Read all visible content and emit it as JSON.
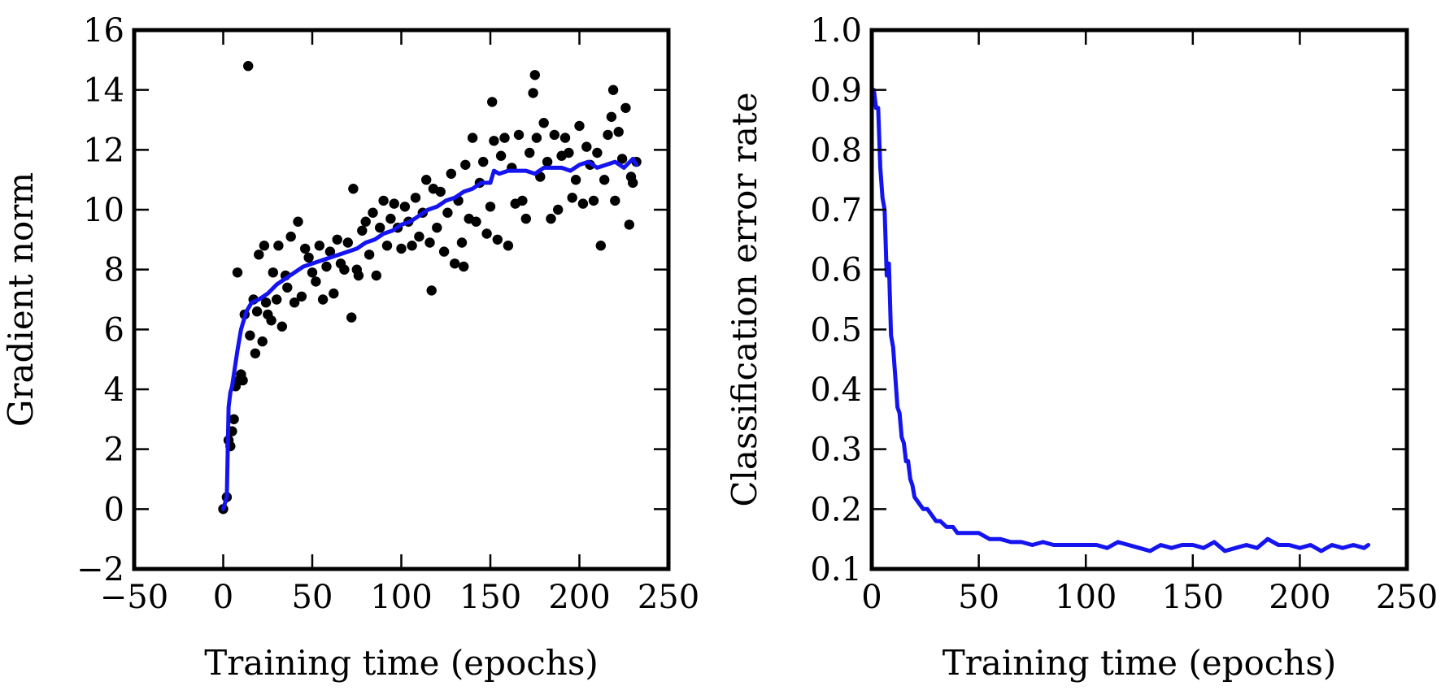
{
  "chart_data": [
    {
      "type": "scatter",
      "xlabel": "Training time (epochs)",
      "ylabel": "Gradient norm",
      "xlim": [
        -50,
        250
      ],
      "ylim": [
        -2,
        16
      ],
      "xticks": [
        -50,
        0,
        50,
        100,
        150,
        200,
        250
      ],
      "yticks": [
        -2,
        0,
        2,
        4,
        6,
        8,
        10,
        12,
        14,
        16
      ],
      "xtick_labels": [
        "−50",
        "0",
        "50",
        "100",
        "150",
        "200",
        "250"
      ],
      "ytick_labels": [
        "−2",
        "0",
        "2",
        "4",
        "6",
        "8",
        "10",
        "12",
        "14",
        "16"
      ],
      "grid": false,
      "colors": {
        "points": "#000000",
        "line": "#1414f0"
      },
      "series": [
        {
          "kind": "scatter",
          "x": [
            0,
            2,
            3,
            4,
            5,
            6,
            7,
            8,
            9,
            10,
            11,
            12,
            14,
            15,
            17,
            18,
            19,
            20,
            22,
            23,
            24,
            25,
            27,
            28,
            30,
            31,
            33,
            35,
            36,
            38,
            40,
            42,
            44,
            46,
            48,
            50,
            52,
            54,
            56,
            58,
            60,
            62,
            64,
            66,
            68,
            70,
            72,
            73,
            75,
            76,
            78,
            80,
            82,
            84,
            86,
            88,
            90,
            92,
            94,
            96,
            98,
            100,
            102,
            104,
            106,
            108,
            110,
            112,
            114,
            116,
            117,
            118,
            120,
            122,
            124,
            126,
            128,
            130,
            132,
            134,
            135,
            136,
            138,
            140,
            142,
            144,
            146,
            148,
            150,
            151,
            152,
            154,
            156,
            158,
            160,
            162,
            164,
            166,
            168,
            170,
            172,
            174,
            175,
            176,
            178,
            180,
            182,
            184,
            186,
            188,
            190,
            192,
            194,
            196,
            198,
            200,
            202,
            204,
            206,
            208,
            210,
            212,
            214,
            216,
            218,
            219,
            220,
            222,
            224,
            226,
            228,
            229,
            230,
            232
          ],
          "y": [
            0.0,
            0.4,
            2.3,
            2.1,
            2.6,
            3.0,
            4.1,
            7.9,
            4.3,
            4.5,
            4.3,
            6.5,
            14.8,
            5.8,
            7.0,
            5.2,
            6.6,
            8.5,
            5.6,
            8.8,
            6.9,
            6.5,
            6.3,
            7.9,
            7.0,
            8.8,
            6.1,
            7.8,
            7.4,
            9.1,
            6.9,
            9.6,
            7.1,
            8.7,
            8.4,
            7.9,
            7.6,
            8.8,
            7.0,
            8.1,
            8.6,
            7.2,
            9.0,
            8.2,
            8.0,
            8.9,
            6.4,
            10.7,
            8.0,
            7.8,
            9.3,
            9.6,
            8.5,
            9.9,
            7.8,
            9.4,
            10.3,
            8.8,
            9.7,
            10.2,
            9.4,
            8.7,
            10.1,
            9.6,
            8.8,
            10.4,
            9.1,
            9.9,
            11.0,
            8.9,
            7.3,
            10.7,
            9.4,
            10.6,
            8.6,
            9.9,
            11.2,
            8.2,
            10.3,
            8.9,
            8.1,
            11.5,
            9.7,
            12.4,
            9.6,
            10.9,
            11.6,
            9.2,
            10.1,
            13.6,
            12.3,
            9.0,
            11.8,
            12.4,
            8.8,
            11.4,
            10.2,
            12.5,
            10.3,
            9.7,
            11.9,
            13.9,
            14.5,
            12.4,
            11.1,
            12.9,
            11.6,
            9.7,
            12.5,
            10.0,
            11.8,
            12.4,
            11.9,
            10.4,
            11.0,
            12.8,
            10.2,
            12.1,
            11.5,
            10.3,
            11.9,
            8.8,
            11.0,
            12.5,
            13.1,
            14.0,
            10.3,
            12.6,
            11.7,
            13.4,
            9.5,
            11.1,
            10.9,
            11.6
          ]
        },
        {
          "kind": "line",
          "x": [
            0,
            2,
            3,
            4,
            5,
            6,
            8,
            10,
            13,
            16,
            20,
            25,
            30,
            35,
            40,
            45,
            50,
            55,
            60,
            65,
            70,
            75,
            80,
            85,
            90,
            95,
            100,
            105,
            110,
            115,
            120,
            125,
            130,
            135,
            140,
            145,
            150,
            152,
            155,
            160,
            165,
            170,
            175,
            180,
            185,
            190,
            195,
            200,
            205,
            210,
            215,
            220,
            225,
            230,
            232
          ],
          "y": [
            0.0,
            0.4,
            3.4,
            3.9,
            4.1,
            4.5,
            5.3,
            6.0,
            6.6,
            6.9,
            7.0,
            7.2,
            7.5,
            7.7,
            7.9,
            8.1,
            8.2,
            8.3,
            8.4,
            8.5,
            8.6,
            8.7,
            8.9,
            9.0,
            9.2,
            9.3,
            9.5,
            9.6,
            9.8,
            10.0,
            10.1,
            10.3,
            10.4,
            10.6,
            10.7,
            10.9,
            10.9,
            11.3,
            11.2,
            11.3,
            11.3,
            11.3,
            11.2,
            11.4,
            11.4,
            11.4,
            11.3,
            11.5,
            11.6,
            11.4,
            11.5,
            11.6,
            11.4,
            11.7,
            11.5
          ]
        }
      ]
    },
    {
      "type": "line",
      "xlabel": "Training time (epochs)",
      "ylabel": "Classification error rate",
      "xlim": [
        0,
        250
      ],
      "ylim": [
        0.1,
        1.0
      ],
      "xticks": [
        0,
        50,
        100,
        150,
        200,
        250
      ],
      "yticks": [
        0.1,
        0.2,
        0.3,
        0.4,
        0.5,
        0.6,
        0.7,
        0.8,
        0.9,
        1.0
      ],
      "xtick_labels": [
        "0",
        "50",
        "100",
        "150",
        "200",
        "250"
      ],
      "ytick_labels": [
        "0.1",
        "0.2",
        "0.3",
        "0.4",
        "0.5",
        "0.6",
        "0.7",
        "0.8",
        "0.9",
        "1.0"
      ],
      "grid": false,
      "colors": {
        "line": "#1414f0"
      },
      "series": [
        {
          "kind": "line",
          "x": [
            0,
            1,
            2,
            3,
            4,
            5,
            6,
            7,
            8,
            9,
            10,
            11,
            12,
            13,
            14,
            15,
            16,
            17,
            18,
            19,
            20,
            22,
            24,
            26,
            28,
            30,
            32,
            35,
            38,
            40,
            43,
            46,
            50,
            55,
            60,
            65,
            70,
            75,
            80,
            85,
            90,
            95,
            100,
            105,
            110,
            115,
            120,
            125,
            130,
            135,
            140,
            145,
            150,
            155,
            160,
            165,
            170,
            175,
            180,
            185,
            190,
            195,
            200,
            205,
            210,
            215,
            220,
            225,
            230,
            232
          ],
          "y": [
            0.88,
            0.9,
            0.87,
            0.87,
            0.77,
            0.72,
            0.7,
            0.59,
            0.61,
            0.49,
            0.47,
            0.42,
            0.37,
            0.36,
            0.32,
            0.31,
            0.28,
            0.28,
            0.25,
            0.24,
            0.22,
            0.21,
            0.2,
            0.2,
            0.19,
            0.18,
            0.18,
            0.17,
            0.17,
            0.16,
            0.16,
            0.16,
            0.16,
            0.15,
            0.15,
            0.145,
            0.145,
            0.14,
            0.145,
            0.14,
            0.14,
            0.14,
            0.14,
            0.14,
            0.135,
            0.145,
            0.14,
            0.135,
            0.13,
            0.14,
            0.135,
            0.14,
            0.14,
            0.135,
            0.145,
            0.13,
            0.135,
            0.14,
            0.135,
            0.15,
            0.14,
            0.14,
            0.135,
            0.14,
            0.13,
            0.14,
            0.135,
            0.14,
            0.135,
            0.14
          ]
        }
      ]
    }
  ]
}
